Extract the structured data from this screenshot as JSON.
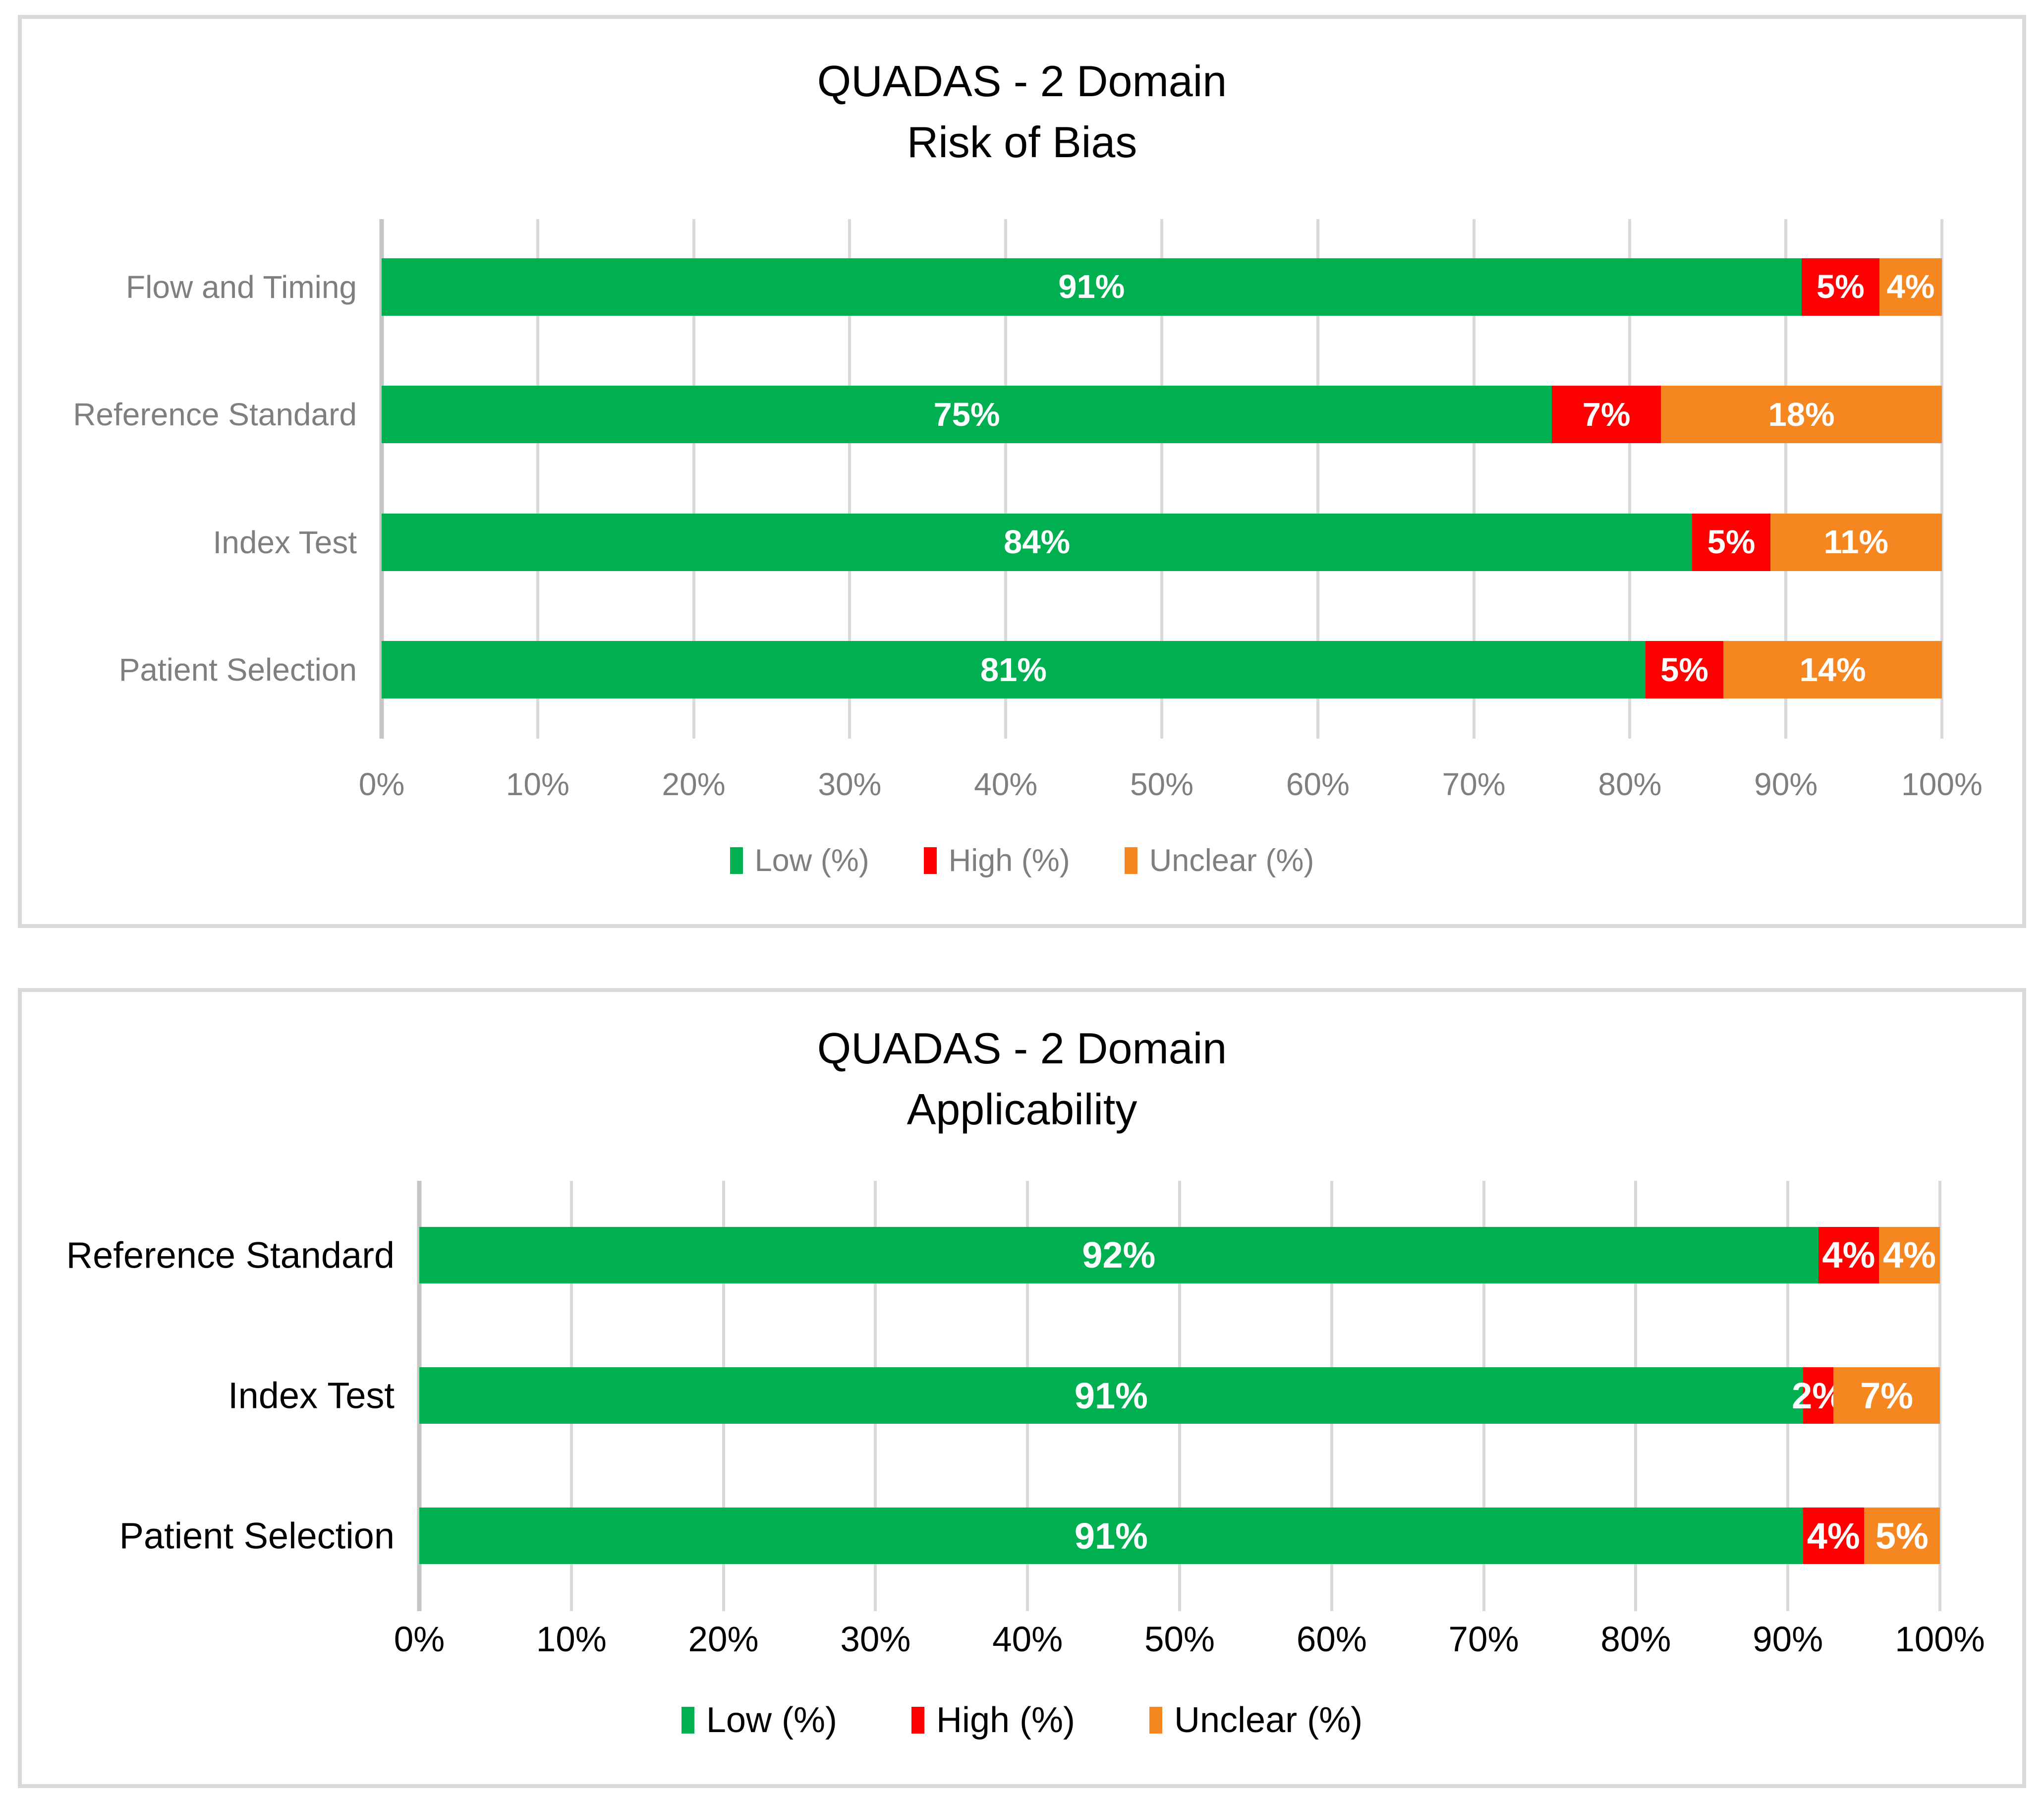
{
  "colors": {
    "low_green": "#00B050",
    "high_red": "#FF0000",
    "unclear_orange": "#F6861F",
    "gridline_gray": "#D9D9D9",
    "panel_border_gray": "#D9D9D9",
    "secondary_text_gray": "#7F7F7F",
    "primary_text_black": "#000000",
    "bar_label_white": "#FFFFFF"
  },
  "chart_data": [
    {
      "type": "bar",
      "orientation": "horizontal-stacked",
      "title": "QUADAS - 2 Domain",
      "subtitle": "Risk of Bias",
      "categories": [
        "Flow and Timing",
        "Reference Standard",
        "Index Test",
        "Patient Selection"
      ],
      "series": [
        {
          "name": "Low (%)",
          "key": "low",
          "color": "#00B050",
          "values": [
            91,
            75,
            84,
            81
          ]
        },
        {
          "name": "High (%)",
          "key": "high",
          "color": "#FF0000",
          "values": [
            5,
            7,
            5,
            5
          ]
        },
        {
          "name": "Unclear (%)",
          "key": "unclear",
          "color": "#F6861F",
          "values": [
            4,
            18,
            11,
            14
          ]
        }
      ],
      "x_ticks": [
        "0%",
        "10%",
        "20%",
        "30%",
        "40%",
        "50%",
        "60%",
        "70%",
        "80%",
        "90%",
        "100%"
      ],
      "xlim": [
        0,
        100
      ],
      "grid": "vertical-only",
      "legend_position": "bottom"
    },
    {
      "type": "bar",
      "orientation": "horizontal-stacked",
      "title": "QUADAS - 2 Domain",
      "subtitle": "Applicability",
      "categories": [
        "Reference Standard",
        "Index Test",
        "Patient Selection"
      ],
      "series": [
        {
          "name": "Low (%)",
          "key": "low",
          "color": "#00B050",
          "values": [
            92,
            91,
            91
          ]
        },
        {
          "name": "High (%)",
          "key": "high",
          "color": "#FF0000",
          "values": [
            4,
            2,
            4
          ]
        },
        {
          "name": "Unclear (%)",
          "key": "unclear",
          "color": "#F6861F",
          "values": [
            4,
            7,
            5
          ]
        }
      ],
      "x_ticks": [
        "0%",
        "10%",
        "20%",
        "30%",
        "40%",
        "50%",
        "60%",
        "70%",
        "80%",
        "90%",
        "100%"
      ],
      "xlim": [
        0,
        100
      ],
      "grid": "vertical-only",
      "legend_position": "bottom"
    }
  ]
}
